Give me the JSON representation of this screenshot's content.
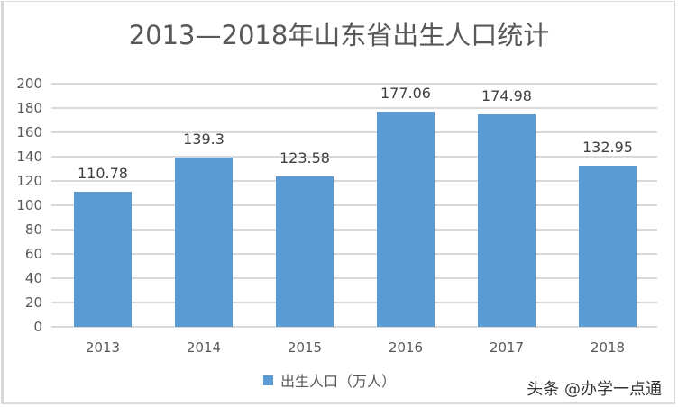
{
  "chart_data": {
    "type": "bar",
    "title": "2013—2018年山东省出生人口统计",
    "categories": [
      "2013",
      "2014",
      "2015",
      "2016",
      "2017",
      "2018"
    ],
    "series": [
      {
        "name": "出生人口（万人）",
        "values": [
          110.78,
          139.3,
          123.58,
          177.06,
          174.98,
          132.95
        ],
        "color": "#5B9BD5"
      }
    ],
    "data_labels": [
      "110.78",
      "139.3",
      "123.58",
      "177.06",
      "174.98",
      "132.95"
    ],
    "xlabel": "",
    "ylabel": "",
    "ylim": [
      0,
      200
    ],
    "yticks": [
      "0",
      "20",
      "40",
      "60",
      "80",
      "100",
      "120",
      "140",
      "160",
      "180",
      "200"
    ],
    "grid": true,
    "legend_position": "bottom"
  },
  "legend": {
    "label": "出生人口（万人）",
    "color": "#5B9BD5"
  },
  "watermark": "头条 @办学一点通"
}
